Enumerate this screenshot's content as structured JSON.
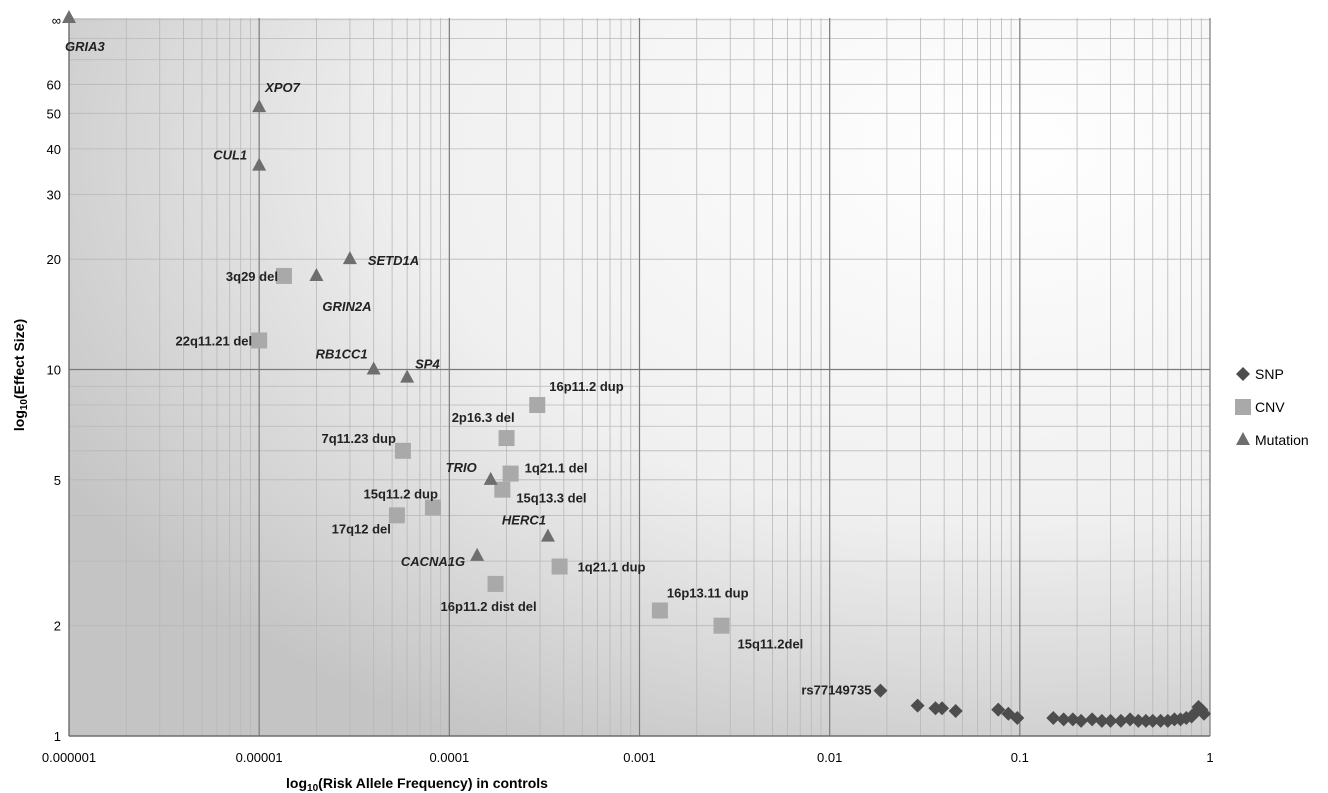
{
  "chart_data": {
    "type": "scatter",
    "title": "",
    "xlabel": "log10(Risk Allele Frequency) in controls",
    "ylabel": "log10(Effect Size)",
    "x_scale": "log",
    "y_scale": "log",
    "xlim": [
      1e-06,
      1
    ],
    "ylim": [
      1,
      100
    ],
    "x_ticks": [
      1e-06,
      1e-05,
      0.0001,
      0.001,
      0.01,
      0.1,
      1
    ],
    "x_tick_labels": [
      "0.000001",
      "0.00001",
      "0.0001",
      "0.001",
      "0.01",
      "0.1",
      "1"
    ],
    "y_ticks": [
      1,
      2,
      5,
      10,
      20,
      30,
      40,
      50,
      60
    ],
    "y_tick_labels": [
      "1",
      "2",
      "5",
      "10",
      "20",
      "30",
      "40",
      "50",
      "60"
    ],
    "y_infinity_label": "∞",
    "grid": true,
    "legend_position": "right",
    "colors": {
      "SNP": "#4d4d4d",
      "CNV": "#a9a9a9",
      "Mutation": "#6e6e6e"
    },
    "series": [
      {
        "name": "SNP",
        "marker": "diamond",
        "points": [
          {
            "x": 0.0185,
            "y": 1.33,
            "label": "rs77149735"
          },
          {
            "x": 0.029,
            "y": 1.21,
            "label": ""
          },
          {
            "x": 0.036,
            "y": 1.19,
            "label": ""
          },
          {
            "x": 0.039,
            "y": 1.19,
            "label": ""
          },
          {
            "x": 0.046,
            "y": 1.17,
            "label": ""
          },
          {
            "x": 0.077,
            "y": 1.18,
            "label": ""
          },
          {
            "x": 0.087,
            "y": 1.15,
            "label": ""
          },
          {
            "x": 0.097,
            "y": 1.12,
            "label": ""
          },
          {
            "x": 0.15,
            "y": 1.12,
            "label": ""
          },
          {
            "x": 0.17,
            "y": 1.11,
            "label": ""
          },
          {
            "x": 0.19,
            "y": 1.11,
            "label": ""
          },
          {
            "x": 0.21,
            "y": 1.1,
            "label": ""
          },
          {
            "x": 0.24,
            "y": 1.11,
            "label": ""
          },
          {
            "x": 0.27,
            "y": 1.1,
            "label": ""
          },
          {
            "x": 0.3,
            "y": 1.1,
            "label": ""
          },
          {
            "x": 0.34,
            "y": 1.1,
            "label": ""
          },
          {
            "x": 0.38,
            "y": 1.11,
            "label": ""
          },
          {
            "x": 0.42,
            "y": 1.1,
            "label": ""
          },
          {
            "x": 0.46,
            "y": 1.1,
            "label": ""
          },
          {
            "x": 0.5,
            "y": 1.1,
            "label": ""
          },
          {
            "x": 0.55,
            "y": 1.1,
            "label": ""
          },
          {
            "x": 0.6,
            "y": 1.1,
            "label": ""
          },
          {
            "x": 0.65,
            "y": 1.11,
            "label": ""
          },
          {
            "x": 0.7,
            "y": 1.11,
            "label": ""
          },
          {
            "x": 0.75,
            "y": 1.12,
            "label": ""
          },
          {
            "x": 0.8,
            "y": 1.13,
            "label": ""
          },
          {
            "x": 0.84,
            "y": 1.16,
            "label": ""
          },
          {
            "x": 0.87,
            "y": 1.2,
            "label": ""
          },
          {
            "x": 0.9,
            "y": 1.18,
            "label": ""
          },
          {
            "x": 0.93,
            "y": 1.15,
            "label": ""
          }
        ]
      },
      {
        "name": "CNV",
        "marker": "square",
        "points": [
          {
            "x": 1.35e-05,
            "y": 18,
            "label": "3q29 del"
          },
          {
            "x": 1e-05,
            "y": 12,
            "label": "22q11.21 del"
          },
          {
            "x": 0.00029,
            "y": 8,
            "label": "16p11.2 dup"
          },
          {
            "x": 0.0002,
            "y": 6.5,
            "label": "2p16.3 del"
          },
          {
            "x": 5.7e-05,
            "y": 6,
            "label": "7q11.23 dup"
          },
          {
            "x": 0.00021,
            "y": 5.2,
            "label": "1q21.1 del"
          },
          {
            "x": 0.00019,
            "y": 4.7,
            "label": "15q13.3 del"
          },
          {
            "x": 8.2e-05,
            "y": 4.2,
            "label": "15q11.2 dup"
          },
          {
            "x": 5.3e-05,
            "y": 4,
            "label": "17q12 del"
          },
          {
            "x": 0.00038,
            "y": 2.9,
            "label": "1q21.1 dup"
          },
          {
            "x": 0.000175,
            "y": 2.6,
            "label": "16p11.2 dist del"
          },
          {
            "x": 0.00128,
            "y": 2.2,
            "label": "16p13.11 dup"
          },
          {
            "x": 0.0027,
            "y": 2,
            "label": "15q11.2del"
          }
        ]
      },
      {
        "name": "Mutation",
        "marker": "triangle",
        "points": [
          {
            "x": 1e-06,
            "y": "inf",
            "label": "GRIA3"
          },
          {
            "x": 1e-05,
            "y": 52,
            "label": "XPO7"
          },
          {
            "x": 1e-05,
            "y": 36,
            "label": "CUL1"
          },
          {
            "x": 3e-05,
            "y": 20,
            "label": "SETD1A"
          },
          {
            "x": 2e-05,
            "y": 18,
            "label": "GRIN2A"
          },
          {
            "x": 4e-05,
            "y": 10,
            "label": "RB1CC1"
          },
          {
            "x": 6e-05,
            "y": 9.5,
            "label": "SP4"
          },
          {
            "x": 0.000165,
            "y": 5,
            "label": "TRIO"
          },
          {
            "x": 0.00033,
            "y": 3.5,
            "label": "HERC1"
          },
          {
            "x": 0.00014,
            "y": 3.1,
            "label": "CACNA1G"
          }
        ]
      }
    ]
  }
}
